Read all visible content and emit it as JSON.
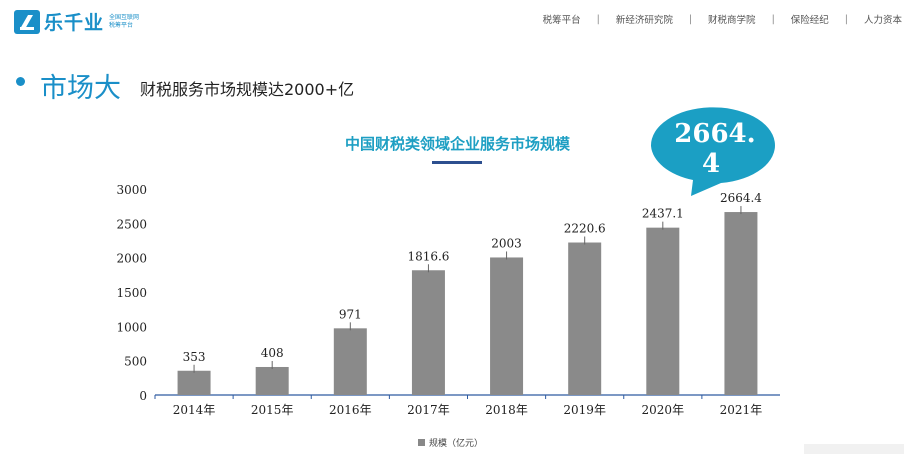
{
  "logo": {
    "name": "乐千业",
    "sub_line1": "全国互联网",
    "sub_line2": "税筹平台"
  },
  "nav": [
    "税筹平台",
    "新经济研究院",
    "财税商学院",
    "保险经纪",
    "人力资本"
  ],
  "nav_sep": "|",
  "section": {
    "title": "市场大",
    "subtitle": "财税服务市场规模达2000+亿"
  },
  "callout": {
    "line1": "2664.",
    "line2": "4",
    "color": "#1b9fc4"
  },
  "chart_data": {
    "type": "bar",
    "title": "中国财税类领域企业服务市场规模",
    "categories": [
      "2014年",
      "2015年",
      "2016年",
      "2017年",
      "2018年",
      "2019年",
      "2020年",
      "2021年"
    ],
    "values": [
      353,
      408,
      971,
      1816.6,
      2003,
      2220.6,
      2437.1,
      2664.4
    ],
    "labels": [
      "353",
      "408",
      "971",
      "1816.6",
      "2003",
      "2220.6",
      "2437.1",
      "2664.4"
    ],
    "ylim": [
      0,
      3000
    ],
    "yticks": [
      0,
      500,
      1000,
      1500,
      2000,
      2500,
      3000
    ],
    "legend": "规模（亿元）",
    "bar_color": "#8a8a8a",
    "axis_color": "#2e5aa0",
    "xlabel": "",
    "ylabel": ""
  }
}
